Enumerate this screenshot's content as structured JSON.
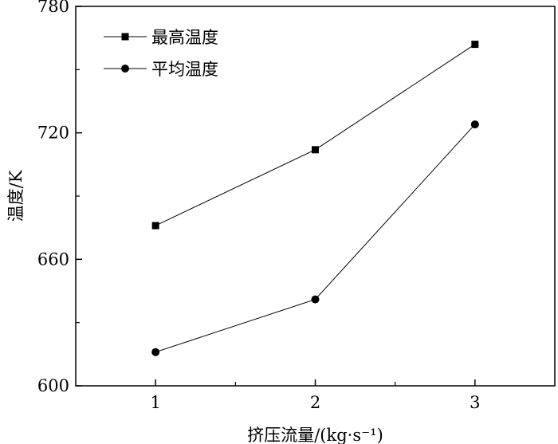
{
  "chart_data": {
    "type": "line",
    "x": [
      1,
      2,
      3
    ],
    "xticks": [
      "1",
      "2",
      "3"
    ],
    "yticks": [
      "600",
      "660",
      "720",
      "780"
    ],
    "xlim": [
      0.5,
      3.5
    ],
    "ylim": [
      600,
      780
    ],
    "xlabel": "挤压流量/(kg·s⁻¹)",
    "ylabel": "温度/K",
    "legend_position": "top-left",
    "series": [
      {
        "name": "最高温度",
        "marker": "square",
        "color": "#000000",
        "values": [
          676,
          712,
          762
        ]
      },
      {
        "name": "平均温度",
        "marker": "circle",
        "color": "#000000",
        "values": [
          616,
          641,
          724
        ]
      }
    ]
  }
}
